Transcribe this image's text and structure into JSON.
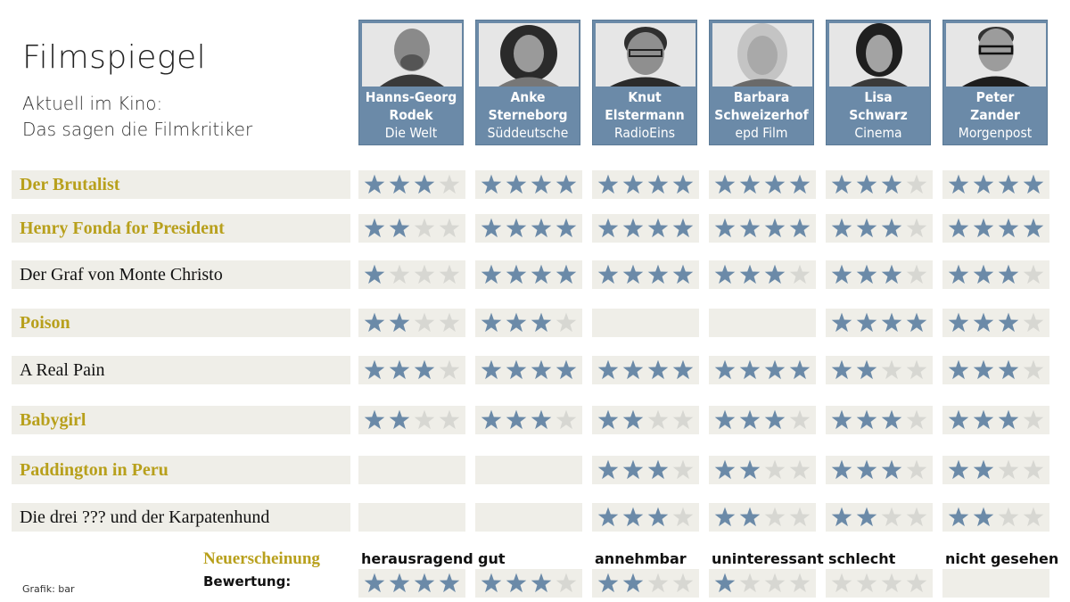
{
  "title": "Filmspiegel",
  "subtitle_lines": [
    "Aktuell im Kino:",
    "Das sagen die Filmkritiker"
  ],
  "colors": {
    "star_filled": "#6b8aa8",
    "star_empty": "#d7d7d2",
    "header_bg": "#6b8aa8",
    "row_bg": "#efeee8",
    "new_release": "#b8a01c"
  },
  "critics": [
    {
      "first": "Hanns-Georg",
      "last": "Rodek",
      "publication": "Die Welt"
    },
    {
      "first": "Anke",
      "last": "Sterneborg",
      "publication": "Süddeutsche"
    },
    {
      "first": "Knut",
      "last": "Elstermann",
      "publication": "RadioEins"
    },
    {
      "first": "Barbara",
      "last": "Schweizerhof",
      "publication": "epd Film"
    },
    {
      "first": "Lisa",
      "last": "Schwarz",
      "publication": "Cinema"
    },
    {
      "first": "Peter",
      "last": "Zander",
      "publication": "Morgenpost"
    }
  ],
  "chart_data": {
    "type": "table",
    "title": "Filmspiegel",
    "subtitle": "Aktuell im Kino: Das sagen die Filmkritiker",
    "columns": [
      "Hanns-Georg Rodek, Die Welt",
      "Anke Sterneborg, Süddeutsche",
      "Knut Elstermann, RadioEins",
      "Barbara Schweizerhof, epd Film",
      "Lisa Schwarz, Cinema",
      "Peter Zander, Morgenpost"
    ],
    "max_stars": 4,
    "rows": [
      {
        "film": "Der Brutalist",
        "new_release": true,
        "ratings": [
          3,
          4,
          4,
          4,
          3,
          4
        ]
      },
      {
        "film": "Henry Fonda for President",
        "new_release": true,
        "ratings": [
          2,
          4,
          4,
          4,
          3,
          4
        ]
      },
      {
        "film": "Der Graf von Monte Christo",
        "new_release": false,
        "ratings": [
          1,
          4,
          4,
          3,
          3,
          3
        ]
      },
      {
        "film": "Poison",
        "new_release": true,
        "ratings": [
          2,
          3,
          null,
          null,
          4,
          3
        ]
      },
      {
        "film": "A Real Pain",
        "new_release": false,
        "ratings": [
          3,
          4,
          4,
          4,
          2,
          3
        ]
      },
      {
        "film": "Babygirl",
        "new_release": true,
        "ratings": [
          2,
          3,
          2,
          3,
          3,
          3
        ]
      },
      {
        "film": "Paddington in Peru",
        "new_release": true,
        "ratings": [
          null,
          null,
          3,
          2,
          3,
          2
        ]
      },
      {
        "film": "Die drei ??? und der Karpatenhund",
        "new_release": false,
        "ratings": [
          null,
          null,
          3,
          2,
          2,
          2
        ]
      }
    ],
    "legend": {
      "new_release_label": "Neuerscheinung",
      "rating_label": "Bewertung:",
      "scale": [
        {
          "label": "herausragend",
          "stars": 4
        },
        {
          "label": "gut",
          "stars": 3
        },
        {
          "label": "annehmbar",
          "stars": 2
        },
        {
          "label": "uninteressant",
          "stars": 1
        },
        {
          "label": "schlecht",
          "stars": 0
        },
        {
          "label": "nicht gesehen",
          "stars": null
        }
      ]
    }
  },
  "credit": "Grafik: bar"
}
